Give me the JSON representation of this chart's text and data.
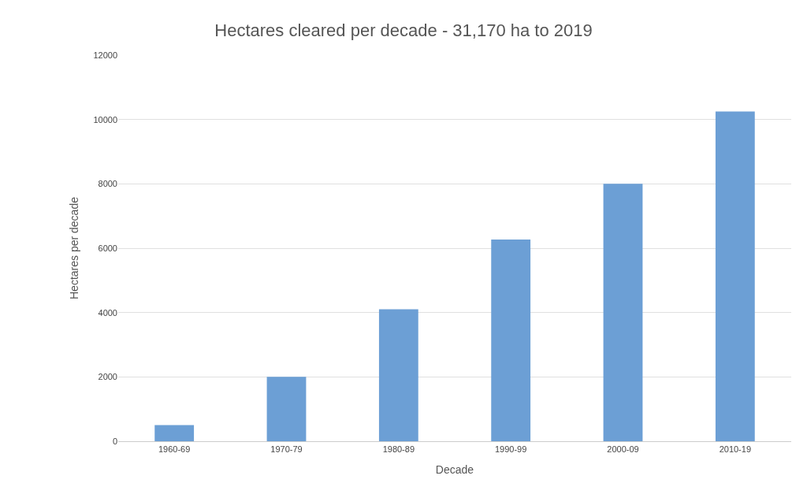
{
  "chart_data": {
    "type": "bar",
    "title": "Hectares cleared per decade - 31,170 ha to 2019",
    "xlabel": "Decade",
    "ylabel": "Hectares per decade",
    "categories": [
      "1960-69",
      "1970-79",
      "1980-89",
      "1990-99",
      "2000-09",
      "2010-19"
    ],
    "values": [
      500,
      2000,
      4100,
      6270,
      8000,
      10250
    ],
    "color": "#6c9fd5",
    "ylim": [
      0,
      12000
    ],
    "yticks": [
      0,
      2000,
      4000,
      6000,
      8000,
      10000,
      12000
    ],
    "grid": "y"
  }
}
